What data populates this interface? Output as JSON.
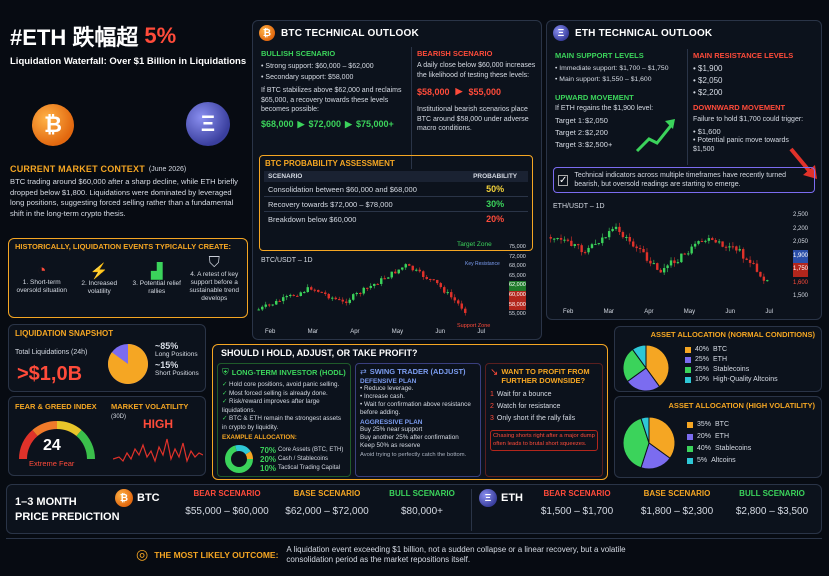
{
  "header": {
    "title": "#ETH 跌幅超",
    "percent": "5%",
    "subtitle": "Liquidation Waterfall: Over $1 Billion in Liquidations"
  },
  "context": {
    "title": "CURRENT MARKET CONTEXT",
    "date": "(June 2026)",
    "text": "BTC trading around $60,000 after a sharp decline, while ETH briefly dropped below $1,800. Liquidations were dominated by leveraged long positions, suggesting forced selling rather than a fundamental shift in the long-term crypto thesis."
  },
  "history": {
    "title": "HISTORICALLY, LIQUIDATION EVENTS TYPICALLY CREATE:",
    "items": [
      "1. Short-term oversold situation",
      "2. Increased volatility",
      "3. Potential relief rallies",
      "4. A retest of key support before a sustainable trend develops"
    ]
  },
  "liquidation": {
    "title": "LIQUIDATION SNAPSHOT",
    "label": "Total Liquidations (24h)",
    "value": ">$1,0B",
    "long_pct": "~85%",
    "long_label": "Long Positions",
    "short_pct": "~15%",
    "short_label": "Short Positions",
    "long_fraction": 0.85
  },
  "fear": {
    "title": "FEAR & GREED INDEX",
    "value": "24",
    "label": "Extreme Fear",
    "vol_title": "MARKET VOLATILITY",
    "vol_period": "(30D)",
    "vol_value": "HIGH"
  },
  "btc_outlook": {
    "coin": "₿",
    "title": "BTC TECHNICAL OUTLOOK",
    "bull_title": "BULLISH SCENARIO",
    "bull_items": [
      "Strong support: $60,000 – $62,000",
      "Secondary support: $58,000"
    ],
    "bull_text": "If BTC stabilizes above $62,000 and reclaims $65,000, a recovery towards these levels becomes possible:",
    "bull_targets": [
      "$68,000",
      "$72,000",
      "$75,000+"
    ],
    "bear_title": "BEARISH SCENARIO",
    "bear_text": "A daily close below $60,000 increases the likelihood of testing these levels:",
    "bear_targets": [
      "$58,000",
      "$55,000"
    ],
    "bear_note": "Institutional bearish scenarios place BTC around $58,000 under adverse macro conditions."
  },
  "btc_prob": {
    "title": "BTC PROBABILITY ASSESSMENT",
    "col1": "SCENARIO",
    "col2": "PROBABILITY",
    "rows": [
      {
        "scenario": "Consolidation between $60,000 and $68,000",
        "prob": "50%"
      },
      {
        "scenario": "Recovery towards $72,000 – $78,000",
        "prob": "30%"
      },
      {
        "scenario": "Breakdown below $60,000",
        "prob": "20%"
      }
    ]
  },
  "btc_chart": {
    "label": "BTC/USDT – 1D",
    "target_zone": "Target Zone",
    "key_resistance": "Key Resistance",
    "support_zone": "Support Zone",
    "y_labels": [
      "75,000",
      "72,000",
      "68,000",
      "65,000",
      "62,000",
      "60,000",
      "58,000",
      "55,000"
    ],
    "x_labels": [
      "Feb",
      "Mar",
      "Apr",
      "May",
      "Jun",
      "Jul"
    ]
  },
  "eth_outlook": {
    "coin": "Ξ",
    "title": "ETH TECHNICAL OUTLOOK",
    "support_title": "MAIN SUPPORT LEVELS",
    "support_items": [
      "Immediate support: $1,700 – $1,750",
      "Main support: $1,550 – $1,600"
    ],
    "resist_title": "MAIN RESISTANCE LEVELS",
    "resist_items": [
      "$1,900",
      "$2,050",
      "$2,200"
    ],
    "up_title": "UPWARD MOVEMENT",
    "up_text": "If ETH regains the $1,900 level:",
    "targets": [
      {
        "label": "Target 1:",
        "value": "$2,050"
      },
      {
        "label": "Target 2:",
        "value": "$2,200"
      },
      {
        "label": "Target 3:",
        "value": "$2,500+"
      }
    ],
    "down_title": "DOWNWARD MOVEMENT",
    "down_text": "Failure to hold $1,700 could trigger:",
    "down_items": [
      "$1,600",
      "Potential panic move towards $1,500"
    ],
    "note": "Technical indicators across multiple timeframes have recently turned bearish, but oversold readings are starting to emerge."
  },
  "eth_chart": {
    "label": "ETH/USDT – 1D",
    "y_labels": [
      "2,500",
      "2,200",
      "2,050",
      "1,900",
      "1,750",
      "1,600",
      "1,500"
    ],
    "x_labels": [
      "Feb",
      "Mar",
      "Apr",
      "May",
      "Jun",
      "Jul"
    ]
  },
  "hold": {
    "title": "SHOULD I HOLD, ADJUST, OR TAKE PROFIT?",
    "long_title": "LONG-TERM INVESTOR (HODL)",
    "long_items": [
      "Hold core positions, avoid panic selling.",
      "Most forced selling is already done.",
      "Risk/reward improves after large liquidations.",
      "BTC & ETH remain the strongest assets in crypto by liquidity."
    ],
    "alloc_title": "EXAMPLE ALLOCATION:",
    "alloc": [
      {
        "pct": "70%",
        "label": "Core Assets (BTC, ETH)"
      },
      {
        "pct": "20%",
        "label": "Cash / Stablecoins"
      },
      {
        "pct": "10%",
        "label": "Tactical Trading Capital"
      }
    ],
    "swing_title": "SWING TRADER (ADJUST)",
    "def_title": "DEFENSIVE PLAN",
    "def_items": [
      "Reduce leverage.",
      "Increase cash.",
      "Wait for confirmation above resistance before adding."
    ],
    "agg_title": "AGGRESSIVE PLAN",
    "agg_items": [
      "Buy 25% near support",
      "Buy another 25% after confirmation",
      "Keep 50% as reserve"
    ],
    "agg_note": "Avoid trying to perfectly catch the bottom.",
    "profit_title": "WANT TO PROFIT FROM FURTHER DOWNSIDE?",
    "profit_items": [
      "Wait for a bounce",
      "Watch for resistance",
      "Only short if the rally fails"
    ],
    "warning": "Chasing shorts right after a major dump often leads to brutal short squeezes."
  },
  "alloc_normal": {
    "title": "ASSET ALLOCATION (NORMAL CONDITIONS)",
    "items": [
      {
        "pct": "40%",
        "label": "BTC",
        "color": "#f5a623",
        "value": 40
      },
      {
        "pct": "25%",
        "label": "ETH",
        "color": "#7b6cf0",
        "value": 25
      },
      {
        "pct": "25%",
        "label": "Stablecoins",
        "color": "#3bd35b",
        "value": 25
      },
      {
        "pct": "10%",
        "label": "High-Quality Altcoins",
        "color": "#2ec7d6",
        "value": 10
      }
    ]
  },
  "alloc_high": {
    "title": "ASSET ALLOCATION (HIGH VOLATILITY)",
    "items": [
      {
        "pct": "35%",
        "label": "BTC",
        "color": "#f5a623",
        "value": 35
      },
      {
        "pct": "20%",
        "label": "ETH",
        "color": "#7b6cf0",
        "value": 20
      },
      {
        "pct": "40%",
        "label": "Stablecoins",
        "color": "#3bd35b",
        "value": 40
      },
      {
        "pct": "5%",
        "label": "Altcoins",
        "color": "#2ec7d6",
        "value": 5
      }
    ]
  },
  "prediction": {
    "title1": "1–3 MONTH",
    "title2": "PRICE PREDICTION",
    "btc_label": "BTC",
    "eth_label": "ETH",
    "bear": "BEAR SCENARIO",
    "base": "BASE SCENARIO",
    "bull": "BULL SCENARIO",
    "btc": [
      "$55,000 – $60,000",
      "$62,000 – $72,000",
      "$80,000+"
    ],
    "eth": [
      "$1,500 – $1,700",
      "$1,800 – $2,300",
      "$2,800 – $3,500"
    ]
  },
  "outcome": {
    "title": "THE MOST LIKELY OUTCOME:",
    "text": "A liquidation event exceeding $1 billion, not a sudden collapse or a linear recovery, but a volatile consolidation period as the market repositions itself."
  },
  "colors": {
    "orange": "#f5a623",
    "red": "#ff4b3a",
    "green": "#3bd35b",
    "purple": "#7b6cf0"
  }
}
